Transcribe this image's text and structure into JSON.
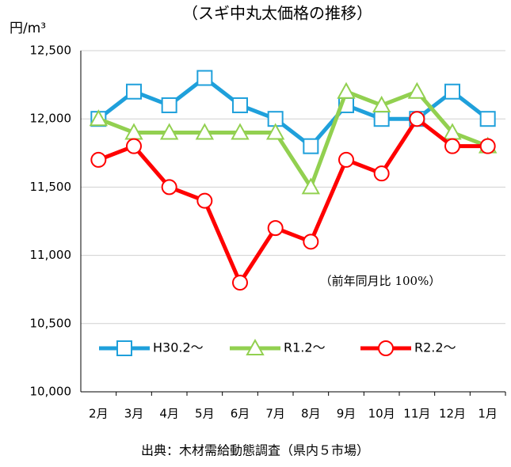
{
  "chart_data": {
    "type": "line",
    "title": "（スギ中丸太価格の推移）",
    "y_unit": "円/m³",
    "categories": [
      "2月",
      "3月",
      "4月",
      "5月",
      "6月",
      "7月",
      "8月",
      "9月",
      "10月",
      "11月",
      "12月",
      "1月"
    ],
    "series": [
      {
        "name": "H30.2〜",
        "color": "#1fa0db",
        "marker": "square",
        "values": [
          12000,
          12200,
          12100,
          12300,
          12100,
          12000,
          11800,
          12100,
          12000,
          12000,
          12200,
          12000
        ]
      },
      {
        "name": "R1.2〜",
        "color": "#92d050",
        "marker": "triangle",
        "values": [
          12000,
          11900,
          11900,
          11900,
          11900,
          11900,
          11500,
          12200,
          12100,
          12200,
          11900,
          11800
        ]
      },
      {
        "name": "R2.2〜",
        "color": "#ff0000",
        "marker": "circle",
        "values": [
          11700,
          11800,
          11500,
          11400,
          10800,
          11200,
          11100,
          11700,
          11600,
          12000,
          11800,
          11800
        ]
      }
    ],
    "ylim": [
      10000,
      12500
    ],
    "yticks": [
      {
        "value": 10000,
        "label": "10,000"
      },
      {
        "value": 10500,
        "label": "10,500"
      },
      {
        "value": 11000,
        "label": "11,000"
      },
      {
        "value": 11500,
        "label": "11,500"
      },
      {
        "value": 12000,
        "label": "12,000"
      },
      {
        "value": 12500,
        "label": "12,500"
      }
    ],
    "grid": true,
    "annotation": "（前年同月比 100%）",
    "source": "出典：木材需給動態調査（県内５市場）"
  }
}
